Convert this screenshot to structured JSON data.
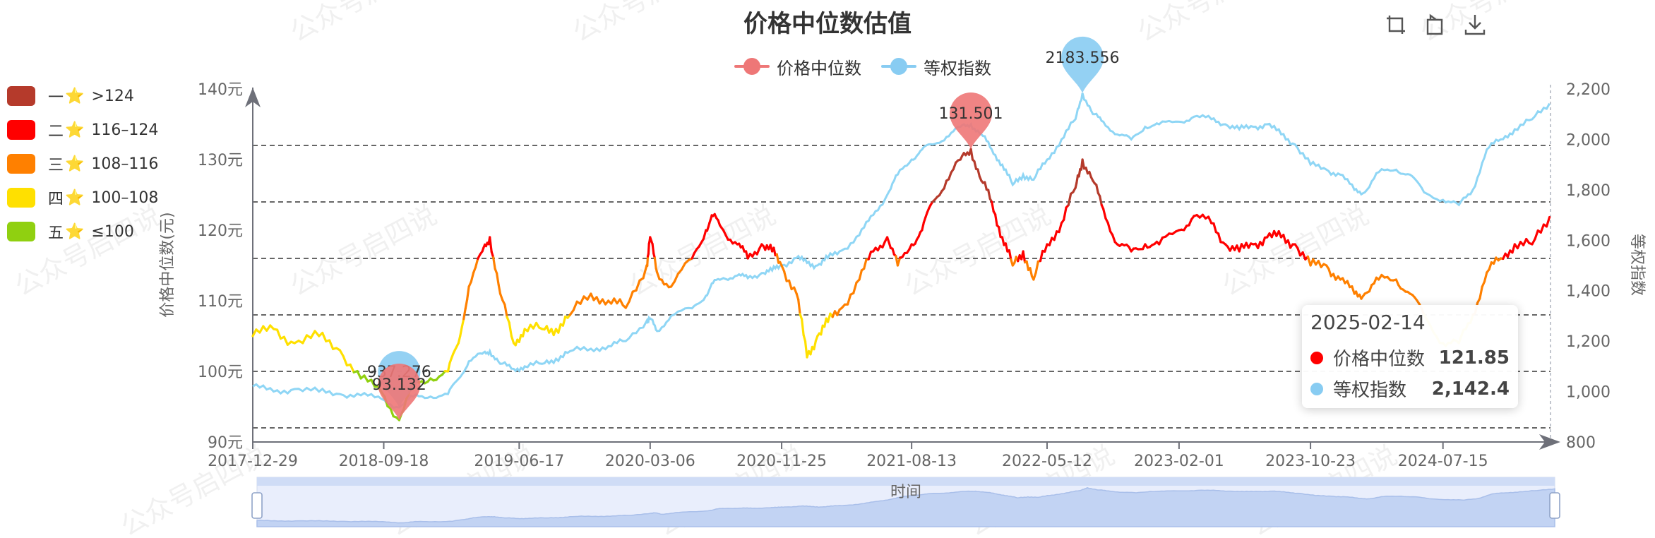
{
  "title": "价格中位数估值",
  "toolbox": [
    {
      "name": "zoom-icon"
    },
    {
      "name": "restore-icon"
    },
    {
      "name": "download-icon"
    }
  ],
  "legend": [
    {
      "name": "价格中位数",
      "color": "#ee7777"
    },
    {
      "name": "等权指数",
      "color": "#88ccf2"
    }
  ],
  "visual_map": [
    {
      "rank": "一",
      "range": ">124",
      "color": "#b53a2b"
    },
    {
      "rank": "二",
      "range": "116–124",
      "color": "#ff0000"
    },
    {
      "rank": "三",
      "range": "108–116",
      "color": "#ff8000"
    },
    {
      "rank": "四",
      "range": "100–108",
      "color": "#ffe000"
    },
    {
      "rank": "五",
      "range": "≤100",
      "color": "#90d010"
    }
  ],
  "tooltip": {
    "date": "2025-02-14",
    "rows": [
      {
        "name": "价格中位数",
        "value": "121.85",
        "color": "#ff0000"
      },
      {
        "name": "等权指数",
        "value": "2,142.4",
        "color": "#88ccf2"
      }
    ]
  },
  "watermark": "公众号启四说",
  "chart_data": {
    "type": "line",
    "title": "价格中位数估值",
    "xlabel": "时间",
    "ylabel_left": "价格中位数(元)",
    "ylabel_right": "等权指数",
    "x_ticks": [
      "2017-12-29",
      "2018-09-18",
      "2019-06-17",
      "2020-03-06",
      "2020-11-25",
      "2021-08-13",
      "2022-05-12",
      "2023-02-01",
      "2023-10-23",
      "2024-07-15"
    ],
    "y_left_ticks": [
      "90元",
      "100元",
      "110元",
      "120元",
      "130元",
      "140元"
    ],
    "y_left_range": [
      90,
      140
    ],
    "y_right_ticks": [
      "800",
      "1,000",
      "1,200",
      "1,400",
      "1,600",
      "1,800",
      "2,000",
      "2,200"
    ],
    "y_right_range": [
      800,
      2200
    ],
    "thresholds": [
      92,
      100,
      108,
      116,
      124,
      132
    ],
    "series": [
      {
        "name": "价格中位数",
        "axis": "left",
        "points": [
          [
            "2017-12-29",
            105
          ],
          [
            "2018-02-09",
            106
          ],
          [
            "2018-03-23",
            104
          ],
          [
            "2018-05-11",
            105
          ],
          [
            "2018-06-22",
            103
          ],
          [
            "2018-08-03",
            99
          ],
          [
            "2018-09-14",
            97
          ],
          [
            "2018-10-19",
            93.1
          ],
          [
            "2018-11-16",
            98
          ],
          [
            "2018-12-21",
            99
          ],
          [
            "2019-01-25",
            100
          ],
          [
            "2019-02-15",
            104
          ],
          [
            "2019-03-08",
            112
          ],
          [
            "2019-04-04",
            117
          ],
          [
            "2019-04-19",
            119
          ],
          [
            "2019-05-10",
            111
          ],
          [
            "2019-06-06",
            104
          ],
          [
            "2019-06-28",
            106
          ],
          [
            "2019-08-02",
            106
          ],
          [
            "2019-08-30",
            106
          ],
          [
            "2019-09-27",
            108
          ],
          [
            "2019-11-08",
            111
          ],
          [
            "2019-12-13",
            110
          ],
          [
            "2020-01-17",
            109
          ],
          [
            "2020-02-28",
            115
          ],
          [
            "2020-03-06",
            119
          ],
          [
            "2020-03-20",
            114
          ],
          [
            "2020-04-17",
            112
          ],
          [
            "2020-05-29",
            116
          ],
          [
            "2020-06-26",
            120
          ],
          [
            "2020-07-10",
            122
          ],
          [
            "2020-07-31",
            120
          ],
          [
            "2020-08-28",
            118
          ],
          [
            "2020-09-18",
            116
          ],
          [
            "2020-10-16",
            118
          ],
          [
            "2020-11-06",
            117
          ],
          [
            "2020-11-25",
            115
          ],
          [
            "2020-12-25",
            111
          ],
          [
            "2021-01-15",
            102
          ],
          [
            "2021-02-05",
            105
          ],
          [
            "2021-02-26",
            107
          ],
          [
            "2021-03-26",
            109
          ],
          [
            "2021-04-30",
            113
          ],
          [
            "2021-05-28",
            117
          ],
          [
            "2021-06-25",
            119
          ],
          [
            "2021-07-16",
            115
          ],
          [
            "2021-08-13",
            118
          ],
          [
            "2021-09-03",
            120
          ],
          [
            "2021-09-24",
            124
          ],
          [
            "2021-10-22",
            127
          ],
          [
            "2021-11-19",
            130
          ],
          [
            "2021-12-10",
            131.5
          ],
          [
            "2021-12-31",
            127
          ],
          [
            "2022-01-21",
            124
          ],
          [
            "2022-02-11",
            119
          ],
          [
            "2022-03-04",
            115
          ],
          [
            "2022-03-25",
            117
          ],
          [
            "2022-04-15",
            113
          ],
          [
            "2022-05-12",
            118
          ],
          [
            "2022-06-10",
            121
          ],
          [
            "2022-07-08",
            126
          ],
          [
            "2022-07-22",
            130
          ],
          [
            "2022-08-12",
            127
          ],
          [
            "2022-09-02",
            123
          ],
          [
            "2022-09-30",
            118
          ],
          [
            "2022-10-28",
            117
          ],
          [
            "2022-11-25",
            118
          ],
          [
            "2022-12-23",
            118
          ],
          [
            "2023-02-01",
            120
          ],
          [
            "2023-03-03",
            122
          ],
          [
            "2023-04-07",
            121
          ],
          [
            "2023-05-05",
            118
          ],
          [
            "2023-06-02",
            117
          ],
          [
            "2023-06-30",
            118
          ],
          [
            "2023-07-28",
            119
          ],
          [
            "2023-08-25",
            119
          ],
          [
            "2023-09-22",
            118
          ],
          [
            "2023-10-23",
            115
          ],
          [
            "2023-11-24",
            115
          ],
          [
            "2023-12-22",
            113
          ],
          [
            "2024-01-19",
            111
          ],
          [
            "2024-02-09",
            111
          ],
          [
            "2024-03-08",
            113
          ],
          [
            "2024-04-12",
            113
          ],
          [
            "2024-05-10",
            111
          ],
          [
            "2024-06-07",
            108
          ],
          [
            "2024-07-15",
            104
          ],
          [
            "2024-08-16",
            104
          ],
          [
            "2024-09-13",
            108
          ],
          [
            "2024-10-11",
            114
          ],
          [
            "2024-11-08",
            116
          ],
          [
            "2024-12-06",
            118
          ],
          [
            "2025-01-10",
            118
          ],
          [
            "2025-02-14",
            121.85
          ]
        ],
        "mark_point": {
          "date": "2021-12-10",
          "label": "131.501"
        },
        "mark_point_min": {
          "date": "2018-10-19",
          "label": "93.132"
        }
      },
      {
        "name": "等权指数",
        "axis": "right",
        "points": [
          [
            "2017-12-29",
            1020
          ],
          [
            "2018-02-09",
            1000
          ],
          [
            "2018-03-23",
            1010
          ],
          [
            "2018-05-11",
            1000
          ],
          [
            "2018-06-22",
            990
          ],
          [
            "2018-08-03",
            985
          ],
          [
            "2018-09-14",
            970
          ],
          [
            "2018-10-19",
            937
          ],
          [
            "2018-11-16",
            980
          ],
          [
            "2018-12-21",
            980
          ],
          [
            "2019-01-25",
            990
          ],
          [
            "2019-02-15",
            1050
          ],
          [
            "2019-03-08",
            1120
          ],
          [
            "2019-04-04",
            1150
          ],
          [
            "2019-04-19",
            1160
          ],
          [
            "2019-05-10",
            1110
          ],
          [
            "2019-06-06",
            1090
          ],
          [
            "2019-06-28",
            1100
          ],
          [
            "2019-08-02",
            1110
          ],
          [
            "2019-08-30",
            1130
          ],
          [
            "2019-09-27",
            1160
          ],
          [
            "2019-11-08",
            1170
          ],
          [
            "2019-12-13",
            1180
          ],
          [
            "2020-01-17",
            1200
          ],
          [
            "2020-02-28",
            1280
          ],
          [
            "2020-03-06",
            1290
          ],
          [
            "2020-03-20",
            1240
          ],
          [
            "2020-04-17",
            1300
          ],
          [
            "2020-05-29",
            1330
          ],
          [
            "2020-06-26",
            1380
          ],
          [
            "2020-07-10",
            1430
          ],
          [
            "2020-07-31",
            1450
          ],
          [
            "2020-08-28",
            1460
          ],
          [
            "2020-09-18",
            1450
          ],
          [
            "2020-10-16",
            1470
          ],
          [
            "2020-11-06",
            1480
          ],
          [
            "2020-11-25",
            1500
          ],
          [
            "2020-12-25",
            1530
          ],
          [
            "2021-01-15",
            1510
          ],
          [
            "2021-02-05",
            1500
          ],
          [
            "2021-02-26",
            1530
          ],
          [
            "2021-03-26",
            1560
          ],
          [
            "2021-04-30",
            1620
          ],
          [
            "2021-05-28",
            1700
          ],
          [
            "2021-06-25",
            1780
          ],
          [
            "2021-07-16",
            1860
          ],
          [
            "2021-08-13",
            1920
          ],
          [
            "2021-09-03",
            1960
          ],
          [
            "2021-09-24",
            1980
          ],
          [
            "2021-10-22",
            2010
          ],
          [
            "2021-11-19",
            2050
          ],
          [
            "2021-12-10",
            2060
          ],
          [
            "2021-12-31",
            2020
          ],
          [
            "2022-01-21",
            1960
          ],
          [
            "2022-02-11",
            1900
          ],
          [
            "2022-03-04",
            1820
          ],
          [
            "2022-03-25",
            1860
          ],
          [
            "2022-04-15",
            1840
          ],
          [
            "2022-05-12",
            1920
          ],
          [
            "2022-06-10",
            2000
          ],
          [
            "2022-07-08",
            2080
          ],
          [
            "2022-07-22",
            2183.6
          ],
          [
            "2022-08-12",
            2100
          ],
          [
            "2022-09-02",
            2070
          ],
          [
            "2022-09-30",
            2020
          ],
          [
            "2022-10-28",
            2000
          ],
          [
            "2022-11-25",
            2050
          ],
          [
            "2022-12-23",
            2060
          ],
          [
            "2023-02-01",
            2070
          ],
          [
            "2023-03-03",
            2090
          ],
          [
            "2023-04-07",
            2080
          ],
          [
            "2023-05-05",
            2060
          ],
          [
            "2023-06-02",
            2040
          ],
          [
            "2023-06-30",
            2050
          ],
          [
            "2023-07-28",
            2060
          ],
          [
            "2023-08-25",
            2020
          ],
          [
            "2023-09-22",
            1980
          ],
          [
            "2023-10-23",
            1900
          ],
          [
            "2023-11-24",
            1880
          ],
          [
            "2023-12-22",
            1860
          ],
          [
            "2024-01-19",
            1800
          ],
          [
            "2024-02-09",
            1790
          ],
          [
            "2024-03-08",
            1870
          ],
          [
            "2024-04-12",
            1880
          ],
          [
            "2024-05-10",
            1860
          ],
          [
            "2024-06-07",
            1790
          ],
          [
            "2024-07-15",
            1760
          ],
          [
            "2024-08-16",
            1740
          ],
          [
            "2024-09-13",
            1800
          ],
          [
            "2024-10-11",
            1960
          ],
          [
            "2024-11-08",
            2000
          ],
          [
            "2024-12-06",
            2040
          ],
          [
            "2025-01-10",
            2080
          ],
          [
            "2025-02-14",
            2142.4
          ]
        ],
        "mark_point": {
          "date": "2022-07-22",
          "label": "2183.556"
        },
        "mark_point_min": {
          "date": "2018-10-19",
          "label": "937.276"
        }
      }
    ],
    "grid": true,
    "legend_position": "top-center"
  }
}
